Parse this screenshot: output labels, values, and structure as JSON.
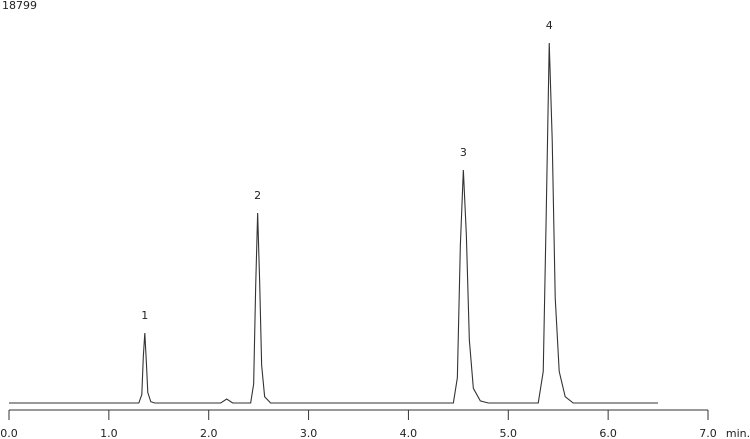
{
  "chart_data": {
    "type": "line",
    "x_label": "min.",
    "x": [
      0,
      1.3,
      1.33,
      1.345,
      1.36,
      1.375,
      1.39,
      1.42,
      1.46,
      2.12,
      2.18,
      2.24,
      2.42,
      2.45,
      2.47,
      2.49,
      2.51,
      2.53,
      2.56,
      2.62,
      4.45,
      4.49,
      4.52,
      4.55,
      4.58,
      4.61,
      4.65,
      4.72,
      4.8,
      5.3,
      5.35,
      5.38,
      5.41,
      5.44,
      5.47,
      5.51,
      5.57,
      5.65,
      6.5
    ],
    "series": [
      {
        "color": "#333333",
        "values": [
          0,
          0,
          400,
          2200,
          3330,
          2000,
          500,
          60,
          0,
          0,
          190,
          0,
          0,
          900,
          5500,
          9040,
          5800,
          1800,
          300,
          0,
          0,
          1200,
          7500,
          11090,
          8000,
          3000,
          700,
          100,
          0,
          0,
          1500,
          9000,
          17130,
          12500,
          5000,
          1500,
          300,
          0,
          0
        ]
      }
    ],
    "annotations": [
      {
        "text": "1",
        "x": 1.36,
        "y": 3330
      },
      {
        "text": "2",
        "x": 2.49,
        "y": 9040
      },
      {
        "text": "3",
        "x": 4.55,
        "y": 11090
      },
      {
        "text": "4",
        "x": 5.41,
        "y": 17130
      }
    ],
    "xlim": [
      0,
      7
    ],
    "xticks": [
      {
        "value": 0,
        "label": "0.0"
      },
      {
        "value": 1,
        "label": "1.0"
      },
      {
        "value": 2,
        "label": "2.0"
      },
      {
        "value": 3,
        "label": "3.0"
      },
      {
        "value": 4,
        "label": "4.0"
      },
      {
        "value": 5,
        "label": "5.0"
      },
      {
        "value": 6,
        "label": "6.0"
      },
      {
        "value": 7,
        "label": "7.0"
      }
    ],
    "ylim": [
      0,
      18799
    ],
    "yticks": [
      18799
    ]
  }
}
